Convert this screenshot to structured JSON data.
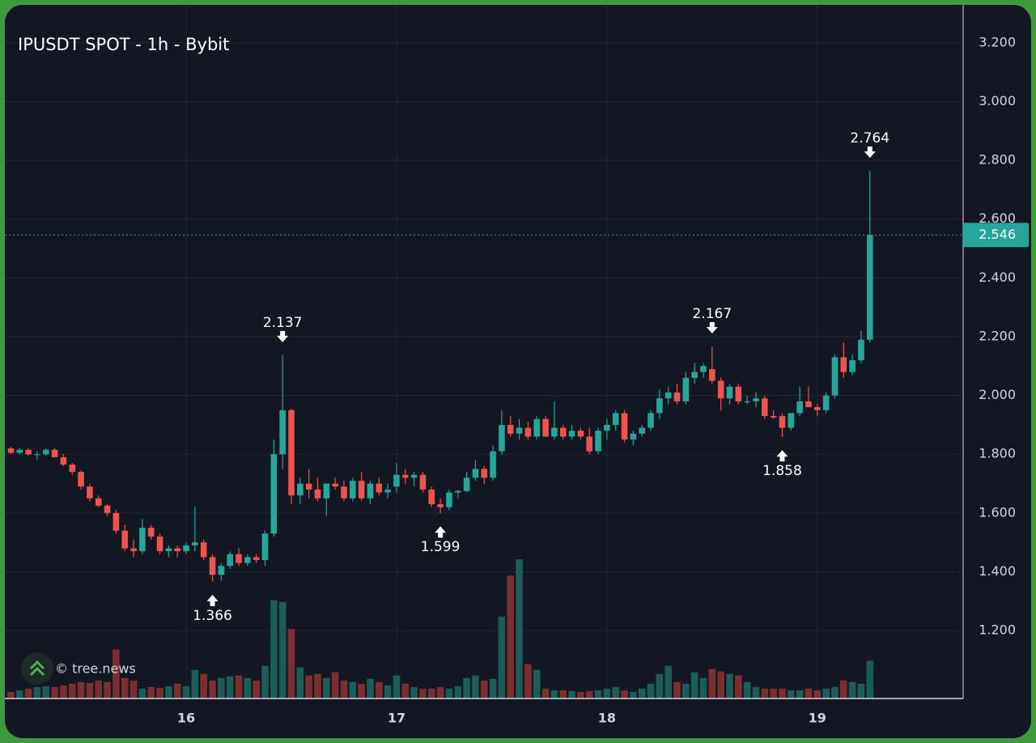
{
  "chart_data": {
    "type": "candlestick",
    "title": "IPUSDT SPOT - 1h - Bybit",
    "watermark": "© tree.news",
    "up_color": "#26a69a",
    "down_color": "#ef5350",
    "up_volume_color": "#1b5e58",
    "down_volume_color": "#7c2f31",
    "grid": true,
    "x": [
      -20,
      -19,
      -18,
      -17,
      -16,
      -15,
      -14,
      -13,
      -12,
      -11,
      -10,
      -9,
      -8,
      -7,
      -6,
      -5,
      -4,
      -3,
      -2,
      -1,
      0,
      1,
      2,
      3,
      4,
      5,
      6,
      7,
      8,
      9,
      10,
      11,
      12,
      13,
      14,
      15,
      16,
      17,
      18,
      19,
      20,
      21,
      22,
      23,
      24,
      25,
      26,
      27,
      28,
      29,
      30,
      31,
      32,
      33,
      34,
      35,
      36,
      37,
      38,
      39,
      40,
      41,
      42,
      43,
      44,
      45,
      46,
      47,
      48,
      49,
      50,
      51,
      52,
      53,
      54,
      55,
      56,
      57,
      58,
      59,
      60,
      61,
      62,
      63,
      64,
      65,
      66,
      67,
      68,
      69,
      70,
      71,
      72,
      73,
      74,
      75,
      76,
      77,
      78
    ],
    "ohlc": [
      [
        1.82,
        1.825,
        1.8,
        1.805
      ],
      [
        1.805,
        1.82,
        1.8,
        1.815
      ],
      [
        1.815,
        1.82,
        1.795,
        1.8
      ],
      [
        1.8,
        1.81,
        1.78,
        1.8
      ],
      [
        1.8,
        1.82,
        1.795,
        1.815
      ],
      [
        1.815,
        1.82,
        1.79,
        1.79
      ],
      [
        1.79,
        1.8,
        1.76,
        1.765
      ],
      [
        1.765,
        1.77,
        1.73,
        1.74
      ],
      [
        1.74,
        1.745,
        1.68,
        1.69
      ],
      [
        1.69,
        1.7,
        1.64,
        1.65
      ],
      [
        1.65,
        1.66,
        1.62,
        1.625
      ],
      [
        1.625,
        1.63,
        1.59,
        1.6
      ],
      [
        1.6,
        1.61,
        1.53,
        1.54
      ],
      [
        1.54,
        1.56,
        1.47,
        1.48
      ],
      [
        1.48,
        1.51,
        1.45,
        1.47
      ],
      [
        1.47,
        1.58,
        1.46,
        1.55
      ],
      [
        1.55,
        1.56,
        1.51,
        1.52
      ],
      [
        1.52,
        1.53,
        1.46,
        1.47
      ],
      [
        1.47,
        1.49,
        1.45,
        1.48
      ],
      [
        1.48,
        1.49,
        1.45,
        1.47
      ],
      [
        1.47,
        1.5,
        1.46,
        1.49
      ],
      [
        1.49,
        1.62,
        1.47,
        1.5
      ],
      [
        1.5,
        1.51,
        1.44,
        1.45
      ],
      [
        1.45,
        1.46,
        1.366,
        1.39
      ],
      [
        1.39,
        1.43,
        1.37,
        1.42
      ],
      [
        1.42,
        1.47,
        1.41,
        1.46
      ],
      [
        1.46,
        1.48,
        1.42,
        1.43
      ],
      [
        1.43,
        1.46,
        1.42,
        1.45
      ],
      [
        1.45,
        1.46,
        1.43,
        1.44
      ],
      [
        1.44,
        1.54,
        1.42,
        1.53
      ],
      [
        1.53,
        1.85,
        1.52,
        1.8
      ],
      [
        1.8,
        2.137,
        1.75,
        1.95
      ],
      [
        1.95,
        1.955,
        1.63,
        1.66
      ],
      [
        1.66,
        1.72,
        1.63,
        1.7
      ],
      [
        1.7,
        1.75,
        1.65,
        1.68
      ],
      [
        1.68,
        1.72,
        1.64,
        1.65
      ],
      [
        1.65,
        1.7,
        1.59,
        1.7
      ],
      [
        1.7,
        1.72,
        1.68,
        1.69
      ],
      [
        1.69,
        1.71,
        1.64,
        1.65
      ],
      [
        1.65,
        1.72,
        1.64,
        1.71
      ],
      [
        1.71,
        1.74,
        1.64,
        1.65
      ],
      [
        1.65,
        1.71,
        1.63,
        1.7
      ],
      [
        1.7,
        1.72,
        1.66,
        1.67
      ],
      [
        1.67,
        1.7,
        1.65,
        1.68
      ],
      [
        1.69,
        1.77,
        1.67,
        1.73
      ],
      [
        1.73,
        1.75,
        1.7,
        1.72
      ],
      [
        1.72,
        1.74,
        1.69,
        1.73
      ],
      [
        1.73,
        1.74,
        1.67,
        1.68
      ],
      [
        1.68,
        1.69,
        1.62,
        1.63
      ],
      [
        1.63,
        1.65,
        1.599,
        1.62
      ],
      [
        1.62,
        1.68,
        1.61,
        1.67
      ],
      [
        1.67,
        1.68,
        1.65,
        1.675
      ],
      [
        1.675,
        1.74,
        1.67,
        1.72
      ],
      [
        1.72,
        1.78,
        1.71,
        1.75
      ],
      [
        1.75,
        1.76,
        1.7,
        1.72
      ],
      [
        1.72,
        1.83,
        1.71,
        1.81
      ],
      [
        1.81,
        1.95,
        1.8,
        1.9
      ],
      [
        1.9,
        1.93,
        1.86,
        1.87
      ],
      [
        1.87,
        1.92,
        1.85,
        1.89
      ],
      [
        1.89,
        1.91,
        1.85,
        1.86
      ],
      [
        1.86,
        1.93,
        1.85,
        1.92
      ],
      [
        1.92,
        1.93,
        1.86,
        1.86
      ],
      [
        1.86,
        1.98,
        1.85,
        1.89
      ],
      [
        1.89,
        1.9,
        1.85,
        1.86
      ],
      [
        1.86,
        1.9,
        1.85,
        1.88
      ],
      [
        1.88,
        1.89,
        1.85,
        1.86
      ],
      [
        1.86,
        1.89,
        1.8,
        1.81
      ],
      [
        1.81,
        1.89,
        1.8,
        1.88
      ],
      [
        1.88,
        1.92,
        1.85,
        1.9
      ],
      [
        1.9,
        1.95,
        1.88,
        1.94
      ],
      [
        1.94,
        1.95,
        1.84,
        1.85
      ],
      [
        1.85,
        1.88,
        1.83,
        1.87
      ],
      [
        1.87,
        1.9,
        1.86,
        1.89
      ],
      [
        1.89,
        1.95,
        1.88,
        1.94
      ],
      [
        1.94,
        2.02,
        1.92,
        1.99
      ],
      [
        1.99,
        2.03,
        1.97,
        2.01
      ],
      [
        2.01,
        2.04,
        1.97,
        1.98
      ],
      [
        1.98,
        2.08,
        1.97,
        2.06
      ],
      [
        2.06,
        2.11,
        2.04,
        2.08
      ],
      [
        2.08,
        2.11,
        2.06,
        2.1
      ],
      [
        2.09,
        2.167,
        2.04,
        2.05
      ],
      [
        2.05,
        2.06,
        1.95,
        1.99
      ],
      [
        1.99,
        2.04,
        1.97,
        2.03
      ],
      [
        2.03,
        2.04,
        1.97,
        1.98
      ],
      [
        1.98,
        2.0,
        1.97,
        1.98
      ],
      [
        1.98,
        2.01,
        1.96,
        1.99
      ],
      [
        1.99,
        2.0,
        1.92,
        1.93
      ],
      [
        1.93,
        1.95,
        1.92,
        1.925
      ],
      [
        1.93,
        1.94,
        1.858,
        1.89
      ],
      [
        1.89,
        1.94,
        1.88,
        1.94
      ],
      [
        1.94,
        2.03,
        1.93,
        1.98
      ],
      [
        1.98,
        2.03,
        1.96,
        1.96
      ],
      [
        1.96,
        1.97,
        1.93,
        1.95
      ],
      [
        1.95,
        2.01,
        1.94,
        2.0
      ],
      [
        2.0,
        2.14,
        1.99,
        2.13
      ],
      [
        2.13,
        2.18,
        2.06,
        2.08
      ],
      [
        2.08,
        2.14,
        2.07,
        2.12
      ],
      [
        2.12,
        2.22,
        2.11,
        2.19
      ],
      [
        2.19,
        2.764,
        2.18,
        2.546
      ]
    ],
    "volume": [
      8,
      10,
      12,
      14,
      15,
      14,
      16,
      18,
      20,
      19,
      22,
      20,
      60,
      25,
      22,
      12,
      14,
      13,
      15,
      18,
      15,
      35,
      30,
      22,
      25,
      27,
      28,
      25,
      22,
      40,
      120,
      118,
      85,
      38,
      28,
      30,
      25,
      32,
      22,
      20,
      18,
      24,
      20,
      16,
      28,
      18,
      14,
      12,
      12,
      14,
      12,
      15,
      25,
      28,
      22,
      24,
      100,
      150,
      170,
      42,
      35,
      12,
      10,
      10,
      9,
      8,
      9,
      10,
      12,
      14,
      10,
      8,
      12,
      18,
      30,
      40,
      20,
      18,
      32,
      25,
      36,
      33,
      30,
      28,
      20,
      14,
      12,
      12,
      12,
      10,
      10,
      12,
      10,
      12,
      14,
      22,
      20,
      18,
      46
    ],
    "markers": [
      {
        "x": 11,
        "value": 2.137,
        "side": "high"
      },
      {
        "x": 3,
        "value": 1.366,
        "side": "low"
      },
      {
        "x": 29,
        "value": 1.599,
        "side": "low"
      },
      {
        "x": 60,
        "value": 2.167,
        "side": "high"
      },
      {
        "x": 68,
        "value": 1.858,
        "side": "low"
      },
      {
        "x": 78,
        "value": 2.764,
        "side": "high"
      }
    ],
    "last_price": 2.546,
    "xlim": [
      -21.24,
      88.64
    ],
    "xticks": [
      {
        "value": 0,
        "label": "16"
      },
      {
        "value": 24,
        "label": "17"
      },
      {
        "value": 48,
        "label": "18"
      },
      {
        "value": 72,
        "label": "19"
      }
    ],
    "ylim": [
      0.969,
      3.318
    ],
    "yticks": [
      {
        "value": 1.2,
        "label": "1.200"
      },
      {
        "value": 1.4,
        "label": "1.400"
      },
      {
        "value": 1.6,
        "label": "1.600"
      },
      {
        "value": 1.8,
        "label": "1.800"
      },
      {
        "value": 2.0,
        "label": "2.000"
      },
      {
        "value": 2.2,
        "label": "2.200"
      },
      {
        "value": 2.4,
        "label": "2.400"
      },
      {
        "value": 2.6,
        "label": "2.600"
      },
      {
        "value": 2.8,
        "label": "2.800"
      },
      {
        "value": 3.0,
        "label": "3.000"
      },
      {
        "value": 3.2,
        "label": "3.200"
      }
    ]
  }
}
